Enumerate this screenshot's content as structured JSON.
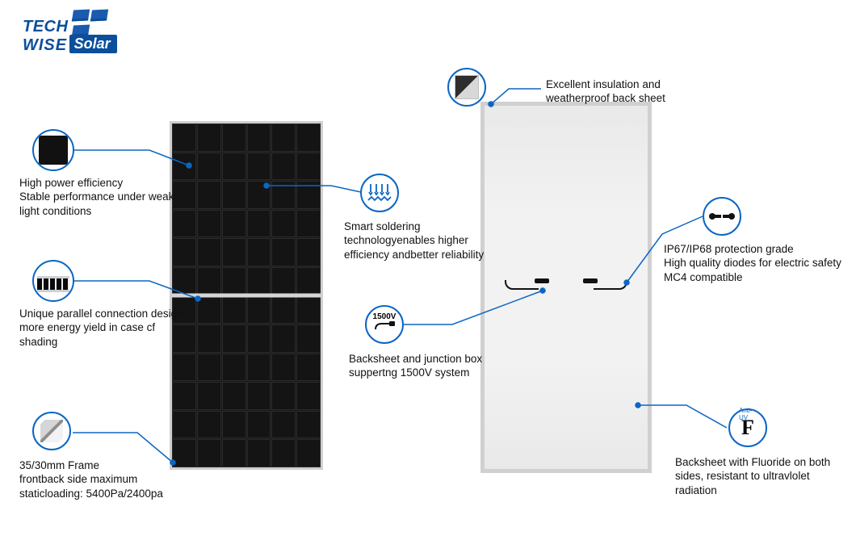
{
  "brand": {
    "line1": "TECH",
    "line2": "WISE",
    "pill": "Solar"
  },
  "colors": {
    "accent": "#0b66c3",
    "text": "#111111",
    "panel_frame": "#cfcfcf",
    "panel_cell": "#141414",
    "back_panel": "#f2f2f3"
  },
  "panels": {
    "front": {
      "cols": 6,
      "rows": 12
    },
    "back": {}
  },
  "callouts": {
    "cell": {
      "l1": "High power efficiency",
      "l2": "Stable performance under weak",
      "l3": "light conditions"
    },
    "parallel": {
      "l1": "Unique parallel connection design",
      "l2": "more energy yield in case cf shading"
    },
    "frame": {
      "l1": "35/30mm Frame",
      "l2": "frontback side maximum",
      "l3": "staticloading: 5400Pa/2400pa"
    },
    "solder": {
      "l1": "Smart soldering",
      "l2": "technologyenables higher",
      "l3": "efficiency andbetter reliability"
    },
    "junction": {
      "voltage": "1500V",
      "l1": "Backsheet and junction box",
      "l2": "suppertng 1500V system"
    },
    "insulation": {
      "l1": "Excellent insulation and",
      "l2": "weatherproof back sheet"
    },
    "ip": {
      "l1": "IP67/IP68 protection grade",
      "l2": "High quality diodes for electric safety",
      "l3": "MC4 compatible"
    },
    "uv": {
      "glyph": "F",
      "badge": "Anti-UV",
      "l1": "Backsheet with Fluoride on both",
      "l2": "sides, resistant to ultravlolet radiation"
    }
  }
}
